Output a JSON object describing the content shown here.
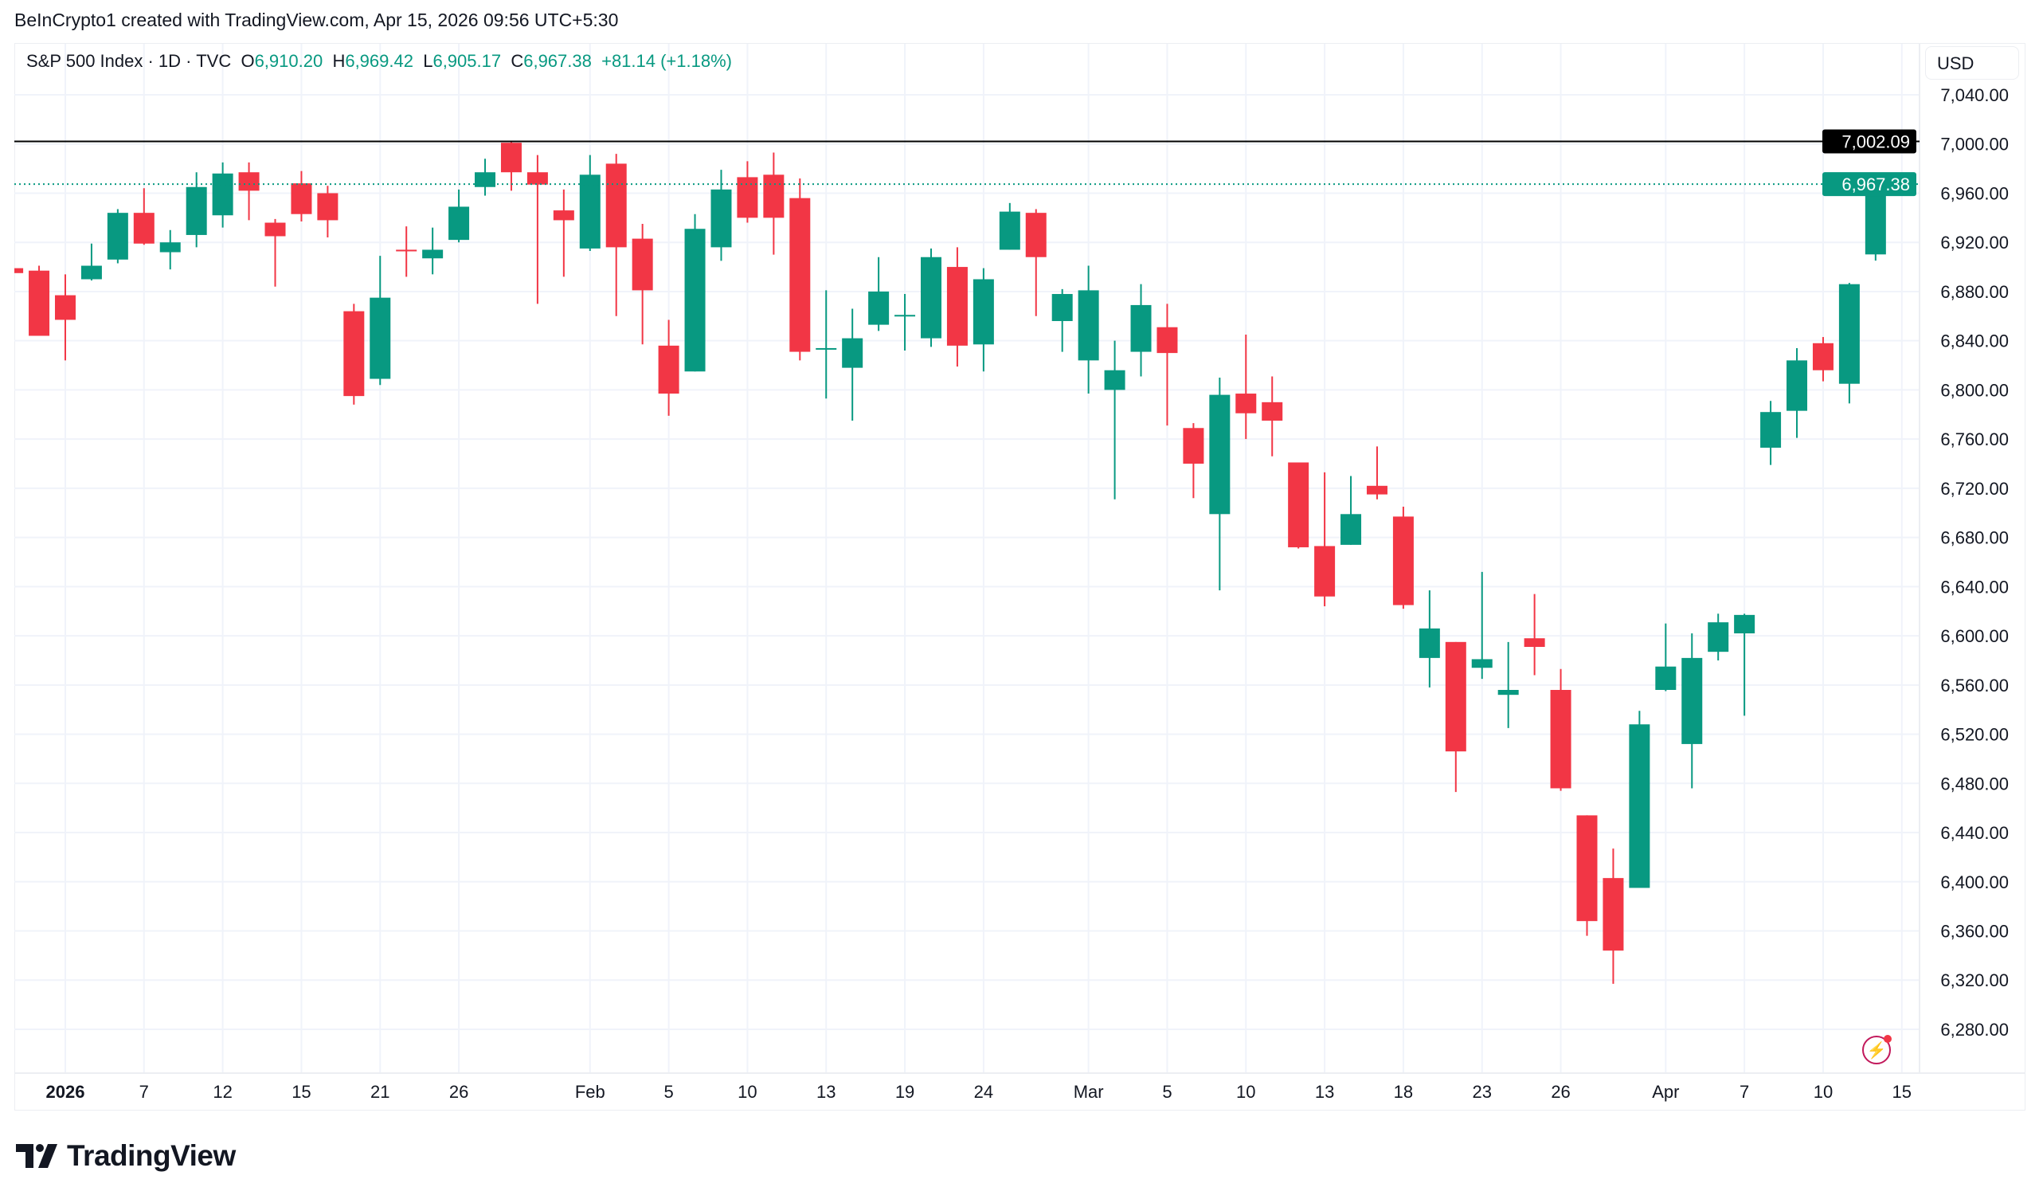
{
  "caption": "BeInCrypto1 created with TradingView.com, Apr 15, 2026 09:56 UTC+5:30",
  "legend": {
    "symbol": "S&P 500 Index · 1D · TVC",
    "o_label": "O",
    "o": "6,910.20",
    "h_label": "H",
    "h": "6,969.42",
    "l_label": "L",
    "l": "6,905.17",
    "c_label": "C",
    "c": "6,967.38",
    "change": "+81.14 (+1.18%)"
  },
  "currency": "USD",
  "brand": "TradingView",
  "colors": {
    "up": "#089981",
    "down": "#F23645",
    "grid": "#f0f3fa",
    "resistance": "#000000"
  },
  "chart_data": {
    "type": "candlestick",
    "title": "S&P 500 Index · 1D · TVC",
    "ylim": [
      6250,
      7060
    ],
    "y_ticks": [
      7040,
      7000,
      6960,
      6920,
      6880,
      6840,
      6800,
      6760,
      6720,
      6680,
      6640,
      6600,
      6560,
      6520,
      6480,
      6440,
      6400,
      6360,
      6320,
      6280
    ],
    "y_tick_labels": [
      "7,040.00",
      "7,000.00",
      "6,960.00",
      "6,920.00",
      "6,880.00",
      "6,840.00",
      "6,800.00",
      "6,760.00",
      "6,720.00",
      "6,680.00",
      "6,640.00",
      "6,600.00",
      "6,560.00",
      "6,520.00",
      "6,480.00",
      "6,440.00",
      "6,400.00",
      "6,360.00",
      "6,320.00",
      "6,280.00"
    ],
    "x_labels": [
      {
        "bar": 2,
        "text": "2026",
        "bold": true
      },
      {
        "bar": 5,
        "text": "7"
      },
      {
        "bar": 8,
        "text": "12"
      },
      {
        "bar": 11,
        "text": "15"
      },
      {
        "bar": 14,
        "text": "21"
      },
      {
        "bar": 17,
        "text": "26"
      },
      {
        "bar": 22,
        "text": "Feb"
      },
      {
        "bar": 25,
        "text": "5"
      },
      {
        "bar": 28,
        "text": "10"
      },
      {
        "bar": 31,
        "text": "13"
      },
      {
        "bar": 34,
        "text": "19"
      },
      {
        "bar": 37,
        "text": "24"
      },
      {
        "bar": 41,
        "text": "Mar"
      },
      {
        "bar": 44,
        "text": "5"
      },
      {
        "bar": 47,
        "text": "10"
      },
      {
        "bar": 50,
        "text": "13"
      },
      {
        "bar": 53,
        "text": "18"
      },
      {
        "bar": 56,
        "text": "23"
      },
      {
        "bar": 59,
        "text": "26"
      },
      {
        "bar": 63,
        "text": "Apr"
      },
      {
        "bar": 66,
        "text": "7"
      },
      {
        "bar": 69,
        "text": "10"
      },
      {
        "bar": 72,
        "text": "15"
      }
    ],
    "candles_ohlc": [
      [
        6899,
        6899,
        6895,
        6895
      ],
      [
        6897,
        6901,
        6844,
        6844
      ],
      [
        6877,
        6894,
        6824,
        6857
      ],
      [
        6890,
        6919,
        6889,
        6901
      ],
      [
        6906,
        6947,
        6903,
        6944
      ],
      [
        6944,
        6964,
        6918,
        6919
      ],
      [
        6912,
        6930,
        6898,
        6920
      ],
      [
        6926,
        6977,
        6916,
        6965
      ],
      [
        6942,
        6985,
        6932,
        6976
      ],
      [
        6977,
        6985,
        6938,
        6962
      ],
      [
        6936,
        6939,
        6884,
        6925
      ],
      [
        6968,
        6978,
        6937,
        6943
      ],
      [
        6960,
        6966,
        6924,
        6938
      ],
      [
        6864,
        6870,
        6788,
        6795
      ],
      [
        6809,
        6909,
        6804,
        6875
      ],
      [
        6914,
        6933,
        6892,
        6913
      ],
      [
        6907,
        6932,
        6894,
        6914
      ],
      [
        6922,
        6963,
        6920,
        6949
      ],
      [
        6965,
        6988,
        6958,
        6977
      ],
      [
        7001,
        7002,
        6962,
        6977
      ],
      [
        6977,
        6991,
        6870,
        6967
      ],
      [
        6946,
        6963,
        6892,
        6938
      ],
      [
        6915,
        6991,
        6913,
        6975
      ],
      [
        6984,
        6992,
        6860,
        6916
      ],
      [
        6923,
        6935,
        6837,
        6881
      ],
      [
        6836,
        6857,
        6779,
        6797
      ],
      [
        6815,
        6943,
        6815,
        6931
      ],
      [
        6916,
        6979,
        6905,
        6963
      ],
      [
        6973,
        6986,
        6936,
        6940
      ],
      [
        6975,
        6993,
        6910,
        6940
      ],
      [
        6956,
        6972,
        6824,
        6831
      ],
      [
        6833,
        6881,
        6793,
        6834
      ],
      [
        6818,
        6866,
        6775,
        6842
      ],
      [
        6853,
        6908,
        6848,
        6880
      ],
      [
        6860,
        6878,
        6832,
        6861
      ],
      [
        6842,
        6915,
        6835,
        6908
      ],
      [
        6900,
        6916,
        6819,
        6836
      ],
      [
        6837,
        6899,
        6815,
        6890
      ],
      [
        6914,
        6952,
        6914,
        6945
      ],
      [
        6944,
        6947,
        6860,
        6908
      ],
      [
        6856,
        6882,
        6831,
        6878
      ],
      [
        6824,
        6901,
        6797,
        6881
      ],
      [
        6800,
        6840,
        6711,
        6816
      ],
      [
        6831,
        6886,
        6811,
        6869
      ],
      [
        6851,
        6870,
        6771,
        6830
      ],
      [
        6769,
        6773,
        6712,
        6740
      ],
      [
        6699,
        6810,
        6637,
        6796
      ],
      [
        6797,
        6845,
        6760,
        6781
      ],
      [
        6790,
        6811,
        6746,
        6775
      ],
      [
        6741,
        6741,
        6671,
        6672
      ],
      [
        6673,
        6733,
        6624,
        6632
      ],
      [
        6674,
        6730,
        6674,
        6699
      ],
      [
        6722,
        6754,
        6711,
        6715
      ],
      [
        6697,
        6705,
        6622,
        6625
      ],
      [
        6582,
        6637,
        6558,
        6606
      ],
      [
        6595,
        6595,
        6473,
        6506
      ],
      [
        6574,
        6652,
        6565,
        6581
      ],
      [
        6552,
        6595,
        6525,
        6556
      ],
      [
        6598,
        6634,
        6568,
        6591
      ],
      [
        6556,
        6573,
        6474,
        6476
      ],
      [
        6454,
        6454,
        6356,
        6368
      ],
      [
        6403,
        6427,
        6317,
        6344
      ],
      [
        6395,
        6539,
        6395,
        6528
      ],
      [
        6556,
        6610,
        6555,
        6575
      ],
      [
        6512,
        6602,
        6476,
        6582
      ],
      [
        6587,
        6618,
        6580,
        6611
      ],
      [
        6602,
        6618,
        6535,
        6617
      ],
      [
        6753,
        6791,
        6739,
        6782
      ],
      [
        6783,
        6834,
        6761,
        6824
      ],
      [
        6838,
        6843,
        6807,
        6816
      ],
      [
        6805,
        6887,
        6789,
        6886
      ],
      [
        6910.2,
        6969.42,
        6905.17,
        6967.38
      ]
    ],
    "resistance_level": {
      "value": 7002.09,
      "label": "7,002.09"
    },
    "last_price": {
      "value": 6967.38,
      "label": "6,967.38"
    }
  }
}
